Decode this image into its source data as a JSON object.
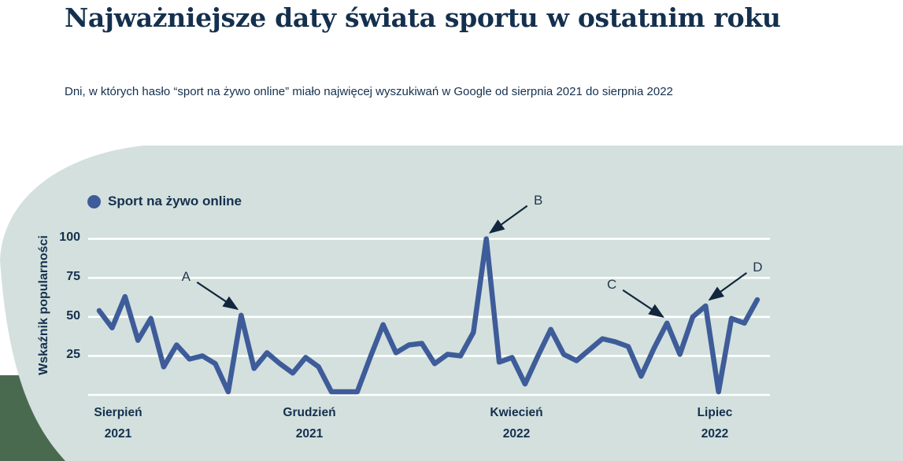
{
  "page": {
    "title": "Najważniejsze daty świata sportu w ostatnim roku",
    "subtitle": "Dni, w których hasło “sport na żywo online” miało najwięcej wyszukiwań w Google od sierpnia 2021 do sierpnia 2022"
  },
  "legend": {
    "series_label": "Sport na żywo online"
  },
  "colors": {
    "background": "#FFFFFF",
    "panel": "#D3E0DD",
    "corner_accent": "#4A6A50",
    "line": "#3E5C99",
    "text": "#14304E",
    "gridline": "#FFFFFF",
    "arrow": "#12263E"
  },
  "chart_data": {
    "type": "line",
    "title": "Najważniejsze daty świata sportu w ostatnim roku",
    "xlabel": "",
    "ylabel": "Wskaźnik popularności",
    "ylim": [
      0,
      100
    ],
    "yticks": [
      "100",
      "75",
      "50",
      "25"
    ],
    "gridlines": [
      0,
      25,
      50,
      75,
      100
    ],
    "xticks": [
      {
        "month": "Sierpień",
        "year": "2021"
      },
      {
        "month": "Grudzień",
        "year": "2021"
      },
      {
        "month": "Kwiecień",
        "year": "2022"
      },
      {
        "month": "Lipiec",
        "year": "2022"
      }
    ],
    "series": [
      {
        "name": "Sport na żywo online",
        "color": "#3E5C99",
        "values": [
          54,
          43,
          63,
          35,
          49,
          18,
          32,
          23,
          25,
          20,
          2,
          51,
          17,
          27,
          20,
          14,
          24,
          18,
          2,
          2,
          2,
          24,
          45,
          27,
          32,
          33,
          20,
          26,
          25,
          40,
          100,
          21,
          24,
          7,
          25,
          42,
          26,
          22,
          29,
          36,
          34,
          31,
          12,
          30,
          46,
          26,
          50,
          57,
          2,
          49,
          46,
          61
        ]
      }
    ],
    "annotations": [
      {
        "letter": "A",
        "index": 11,
        "side": "left",
        "value": 51
      },
      {
        "letter": "B",
        "index": 30,
        "side": "right",
        "value": 100
      },
      {
        "letter": "C",
        "index": 44,
        "side": "left",
        "value": 46
      },
      {
        "letter": "D",
        "index": 47,
        "side": "right",
        "value": 57
      }
    ]
  }
}
